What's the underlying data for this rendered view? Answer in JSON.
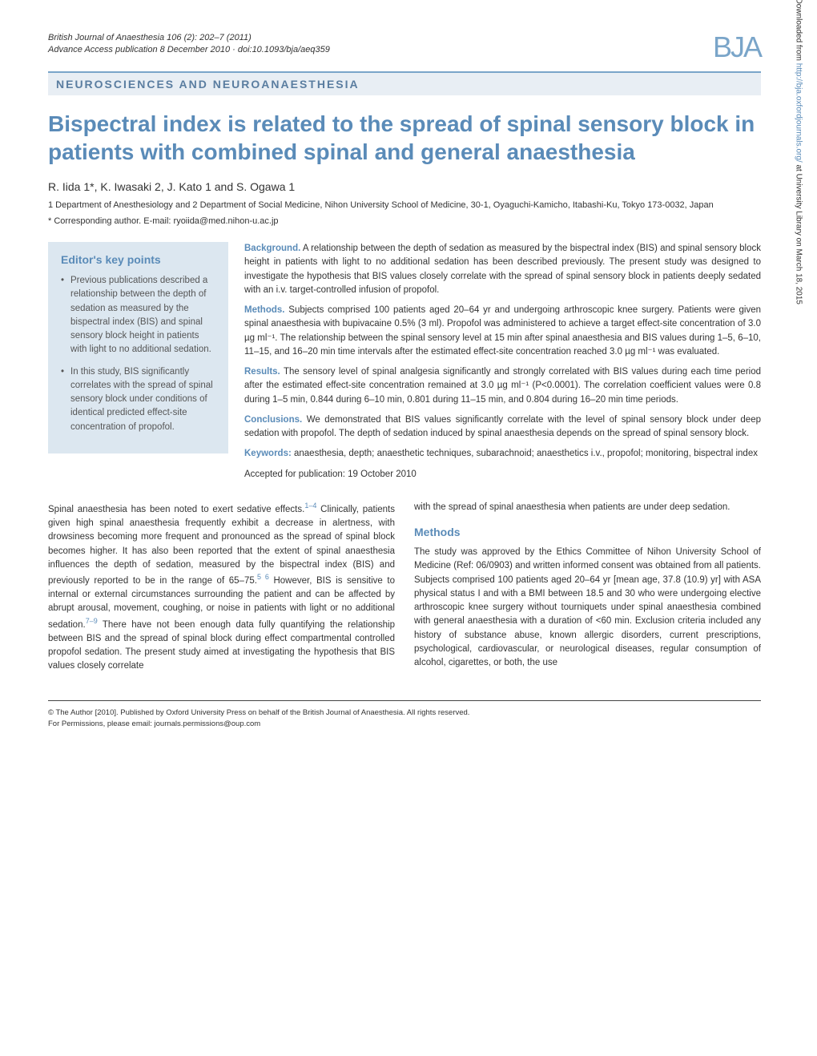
{
  "meta": {
    "journal_line1": "British Journal of Anaesthesia 106 (2): 202–7 (2011)",
    "journal_line2": "Advance Access publication 8 December 2010 · doi:10.1093/bja/aeq359",
    "logo_text": "BJA",
    "section_banner": "NEUROSCIENCES AND NEUROANAESTHESIA"
  },
  "title": "Bispectral index is related to the spread of spinal sensory block in patients with combined spinal and general anaesthesia",
  "authors": "R. Iida 1*, K. Iwasaki 2, J. Kato 1 and S. Ogawa 1",
  "affiliations": "1 Department of Anesthesiology and 2 Department of Social Medicine, Nihon University School of Medicine, 30-1, Oyaguchi-Kamicho, Itabashi-Ku, Tokyo 173-0032, Japan",
  "corresponding": "* Corresponding author. E-mail: ryoiida@med.nihon-u.ac.jp",
  "key_points": {
    "title": "Editor's key points",
    "items": [
      "Previous publications described a relationship between the depth of sedation as measured by the bispectral index (BIS) and spinal sensory block height in patients with light to no additional sedation.",
      "In this study, BIS significantly correlates with the spread of spinal sensory block under conditions of identical predicted effect-site concentration of propofol."
    ]
  },
  "abstract": {
    "background_label": "Background.",
    "background_text": " A relationship between the depth of sedation as measured by the bispectral index (BIS) and spinal sensory block height in patients with light to no additional sedation has been described previously. The present study was designed to investigate the hypothesis that BIS values closely correlate with the spread of spinal sensory block in patients deeply sedated with an i.v. target-controlled infusion of propofol.",
    "methods_label": "Methods.",
    "methods_text": " Subjects comprised 100 patients aged 20–64 yr and undergoing arthroscopic knee surgery. Patients were given spinal anaesthesia with bupivacaine 0.5% (3 ml). Propofol was administered to achieve a target effect-site concentration of 3.0 µg ml⁻¹. The relationship between the spinal sensory level at 15 min after spinal anaesthesia and BIS values during 1–5, 6–10, 11–15, and 16–20 min time intervals after the estimated effect-site concentration reached 3.0 µg ml⁻¹ was evaluated.",
    "results_label": "Results.",
    "results_text": " The sensory level of spinal analgesia significantly and strongly correlated with BIS values during each time period after the estimated effect-site concentration remained at 3.0 µg ml⁻¹ (P<0.0001). The correlation coefficient values were 0.8 during 1–5 min, 0.844 during 6–10 min, 0.801 during 11–15 min, and 0.804 during 16–20 min time periods.",
    "conclusions_label": "Conclusions.",
    "conclusions_text": " We demonstrated that BIS values significantly correlate with the level of spinal sensory block under deep sedation with propofol. The depth of sedation induced by spinal anaesthesia depends on the spread of spinal sensory block.",
    "keywords_label": "Keywords:",
    "keywords_text": " anaesthesia, depth; anaesthetic techniques, subarachnoid; anaesthetics i.v., propofol; monitoring, bispectral index",
    "accepted": "Accepted for publication: 19 October 2010"
  },
  "body": {
    "col1_p1_a": "Spinal anaesthesia has been noted to exert sedative effects.",
    "col1_ref1": "1–4",
    "col1_p1_b": " Clinically, patients given high spinal anaesthesia frequently exhibit a decrease in alertness, with drowsiness becoming more frequent and pronounced as the spread of spinal block becomes higher. It has also been reported that the extent of spinal anaesthesia influences the depth of sedation, measured by the bispectral index (BIS) and previously reported to be in the range of 65–75.",
    "col1_ref2": "5 6",
    "col1_p1_c": " However, BIS is sensitive to internal or external circumstances surrounding the patient and can be affected by abrupt arousal, movement, coughing, or noise in patients with light or no additional sedation.",
    "col1_ref3": "7–9",
    "col1_p1_d": " There have not been enough data fully quantifying the relationship between BIS and the spread of spinal block during effect compartmental controlled propofol sedation. The present study aimed at investigating the hypothesis that BIS values closely correlate",
    "col2_p1": "with the spread of spinal anaesthesia when patients are under deep sedation.",
    "methods_heading": "Methods",
    "col2_p2": "The study was approved by the Ethics Committee of Nihon University School of Medicine (Ref: 06/0903) and written informed consent was obtained from all patients. Subjects comprised 100 patients aged 20–64 yr [mean age, 37.8 (10.9) yr] with ASA physical status I and with a BMI between 18.5 and 30 who were undergoing elective arthroscopic knee surgery without tourniquets under spinal anaesthesia combined with general anaesthesia with a duration of <60 min. Exclusion criteria included any history of substance abuse, known allergic disorders, current prescriptions, psychological, cardiovascular, or neurological diseases, regular consumption of alcohol, cigarettes, or both, the use"
  },
  "footer": {
    "line1": "© The Author [2010]. Published by Oxford University Press on behalf of the British Journal of Anaesthesia. All rights reserved.",
    "line2": "For Permissions, please email: journals.permissions@oup.com"
  },
  "side_note": {
    "prefix": "Downloaded from ",
    "link": "http://bja.oxfordjournals.org/",
    "suffix": " at University Library on March 18, 2015"
  },
  "colors": {
    "accent": "#5a8bb8",
    "banner_bg": "#e8eef4",
    "keypoints_bg": "#dce7f0"
  }
}
